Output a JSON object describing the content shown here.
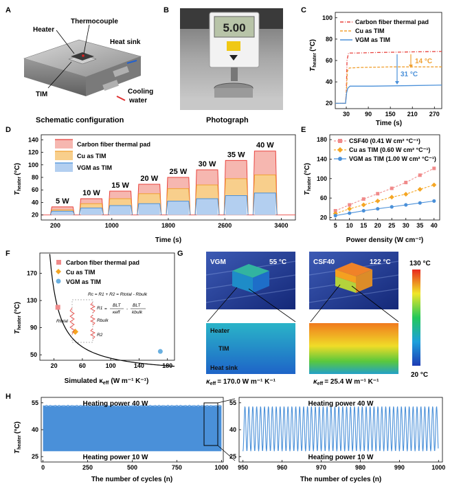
{
  "panel_letters": [
    "A",
    "B",
    "C",
    "D",
    "E",
    "F",
    "G",
    "H"
  ],
  "panel_a": {
    "labels": {
      "heater": "Heater",
      "thermocouple": "Thermocouple",
      "heat_sink": "Heat sink",
      "tim": "TIM",
      "cooling_1": "Cooling",
      "cooling_2": "water"
    },
    "caption": "Schematic configuration"
  },
  "panel_b": {
    "display": "5.00",
    "caption": "Photograph"
  },
  "colors": {
    "cf": "#f08a8a",
    "cu": "#f5a623",
    "vgm": "#4a90d9",
    "cf_line": "#e8413c",
    "cu_line": "#f0a030",
    "vgm_line": "#4a90d9"
  },
  "chart_data": [
    {
      "id": "C",
      "type": "line",
      "ylabel": "T",
      "ylabel_sub": "heater",
      "ylabel_unit": "(°C)",
      "xlabel": "Time (s)",
      "xlim": [
        0,
        290
      ],
      "ylim": [
        15,
        105
      ],
      "xticks": [
        "30",
        "90",
        "150",
        "210",
        "270"
      ],
      "xtick_values": [
        30,
        90,
        150,
        210,
        270
      ],
      "yticks": [
        "20",
        "40",
        "60",
        "80",
        "100"
      ],
      "ytick_values": [
        20,
        40,
        60,
        80,
        100
      ],
      "series": [
        {
          "name": "Carbon fiber thermal pad",
          "style": "dashdot",
          "points": [
            [
              0,
              20
            ],
            [
              28,
              20
            ],
            [
              30,
              30
            ],
            [
              32,
              60
            ],
            [
              36,
              67
            ],
            [
              60,
              67
            ],
            [
              120,
              67.5
            ],
            [
              200,
              68
            ],
            [
              290,
              68.5
            ]
          ]
        },
        {
          "name": "Cu as TIM",
          "style": "dashed",
          "points": [
            [
              0,
              20
            ],
            [
              28,
              20
            ],
            [
              30,
              28
            ],
            [
              33,
              50
            ],
            [
              38,
              53
            ],
            [
              70,
              53.5
            ],
            [
              150,
              54
            ],
            [
              290,
              54
            ]
          ]
        },
        {
          "name": "VGM as TIM",
          "style": "solid",
          "points": [
            [
              0,
              20
            ],
            [
              28,
              20
            ],
            [
              31,
              30
            ],
            [
              34,
              34
            ],
            [
              40,
              36
            ],
            [
              100,
              36
            ],
            [
              200,
              36.5
            ],
            [
              290,
              37
            ]
          ]
        }
      ],
      "annotations": [
        "14 °C",
        "31 °C"
      ]
    },
    {
      "id": "D",
      "type": "area",
      "ylabel": "T",
      "ylabel_sub": "heater",
      "ylabel_unit": "(°C)",
      "xlabel": "Time (s)",
      "xlim": [
        0,
        3600
      ],
      "ylim": [
        12,
        148
      ],
      "xticks": [
        "200",
        "1000",
        "1800",
        "2600",
        "3400"
      ],
      "xtick_values": [
        200,
        1000,
        1800,
        2600,
        3400
      ],
      "yticks": [
        "20",
        "40",
        "60",
        "80",
        "100",
        "120",
        "140"
      ],
      "ytick_values": [
        20,
        40,
        60,
        80,
        100,
        120,
        140
      ],
      "baseline": 20,
      "steps": [
        {
          "label": "5 W",
          "start": 150,
          "end": 450,
          "cf": 33,
          "cu": 28,
          "vgm": 26
        },
        {
          "label": "10 W",
          "start": 560,
          "end": 860,
          "cf": 46,
          "cu": 38,
          "vgm": 31
        },
        {
          "label": "15 W",
          "start": 970,
          "end": 1270,
          "cf": 58,
          "cu": 46,
          "vgm": 35
        },
        {
          "label": "20 W",
          "start": 1380,
          "end": 1680,
          "cf": 69,
          "cu": 54,
          "vgm": 38
        },
        {
          "label": "25 W",
          "start": 1790,
          "end": 2090,
          "cf": 80,
          "cu": 62,
          "vgm": 42
        },
        {
          "label": "30 W",
          "start": 2200,
          "end": 2500,
          "cf": 92,
          "cu": 68,
          "vgm": 46
        },
        {
          "label": "35 W",
          "start": 2610,
          "end": 2910,
          "cf": 107,
          "cu": 78,
          "vgm": 51
        },
        {
          "label": "40 W",
          "start": 3020,
          "end": 3320,
          "cf": 122,
          "cu": 84,
          "vgm": 55
        }
      ],
      "legend": [
        "Carbon fiber thermal pad",
        "Cu as TIM",
        "VGM as TIM"
      ]
    },
    {
      "id": "E",
      "type": "line",
      "ylabel": "T",
      "ylabel_sub": "heater",
      "ylabel_unit": "(°C)",
      "xlabel": "Power density (W cm⁻²)",
      "xlim": [
        3,
        42
      ],
      "ylim": [
        15,
        190
      ],
      "xticks": [
        "5",
        "10",
        "15",
        "20",
        "25",
        "30",
        "35",
        "40"
      ],
      "xtick_values": [
        5,
        10,
        15,
        20,
        25,
        30,
        35,
        40
      ],
      "yticks": [
        "20",
        "60",
        "100",
        "140",
        "180"
      ],
      "ytick_values": [
        20,
        60,
        100,
        140,
        180
      ],
      "x": [
        5,
        10,
        15,
        20,
        25,
        30,
        35,
        40
      ],
      "series": [
        {
          "name": "CSF40  (0.41 W cm² °C⁻¹)",
          "style": "dashed",
          "marker": "square",
          "values": [
            34,
            46,
            58,
            69,
            80,
            92,
            107,
            121
          ]
        },
        {
          "name": "Cu as TIM  (0.60 W cm² °C⁻¹)",
          "style": "dashed",
          "marker": "diamond",
          "values": [
            28,
            38,
            46,
            54,
            62,
            68,
            78,
            87
          ]
        },
        {
          "name": "VGM as TIM (1.00 W cm² °C⁻¹)",
          "style": "solid",
          "marker": "circle",
          "values": [
            24,
            29,
            34,
            38,
            42,
            46,
            50,
            54
          ]
        }
      ]
    },
    {
      "id": "F",
      "type": "scatter",
      "ylabel": "T",
      "ylabel_sub": "heater",
      "ylabel_unit": "(°C)",
      "xlabel": "Simulated κ",
      "xlabel_sub": "eff",
      "xlabel_unit": "(W m⁻¹ K⁻¹)",
      "xlim": [
        0,
        190
      ],
      "ylim": [
        42,
        200
      ],
      "xticks": [
        "20",
        "60",
        "100",
        "140",
        "180"
      ],
      "xtick_values": [
        20,
        60,
        100,
        140,
        180
      ],
      "yticks": [
        "50",
        "90",
        "130",
        "170"
      ],
      "ytick_values": [
        50,
        90,
        130,
        170
      ],
      "curve_fit": "T = 20 + 2500/κ",
      "points": [
        {
          "name": "Carbon fiber thermal pad",
          "x": 25.4,
          "y": 120,
          "marker": "square"
        },
        {
          "name": "Cu as TIM",
          "x": 50,
          "y": 84,
          "marker": "diamond"
        },
        {
          "name": "VGM as TIM",
          "x": 170,
          "y": 55,
          "marker": "circle"
        }
      ],
      "equations": {
        "eq1": "Rc = R1 + R2 = Rtotal - Rbulk",
        "eq2a": "BLT",
        "eq2b": "κeff",
        "eq2c": "BLT",
        "eq2d": "kbulk"
      },
      "circuit_labels": [
        "Rtotal",
        "R1",
        "Rbulk",
        "R2"
      ]
    },
    {
      "id": "H_left",
      "type": "area",
      "ylabel": "T",
      "ylabel_sub": "heater",
      "ylabel_unit": "(°C)",
      "xlabel": "The number of cycles (n)",
      "xlim": [
        -10,
        1010
      ],
      "ylim": [
        22,
        58
      ],
      "xticks": [
        "0",
        "250",
        "500",
        "750",
        "1000"
      ],
      "xtick_values": [
        0,
        250,
        500,
        750,
        1000
      ],
      "yticks": [
        "25",
        "40",
        "55"
      ],
      "ytick_values": [
        25,
        40,
        55
      ],
      "band_min": 28,
      "band_max": 53,
      "annotations": [
        "Heating power 40 W",
        "Heating power 10 W"
      ]
    },
    {
      "id": "H_right",
      "type": "line",
      "xlabel": "The number of cycles (n)",
      "xlim": [
        949,
        1001
      ],
      "ylim": [
        22,
        58
      ],
      "xticks": [
        "950",
        "960",
        "970",
        "980",
        "990",
        "1000"
      ],
      "xtick_values": [
        950,
        960,
        970,
        980,
        990,
        1000
      ],
      "yticks": [
        "25",
        "40",
        "55"
      ],
      "ytick_values": [
        25,
        40,
        55
      ],
      "cycle_min": 28,
      "cycle_max": 53,
      "cycles": 50,
      "annotations": [
        "Heating power 40 W",
        "Heating power 10 W"
      ]
    }
  ],
  "panel_g": {
    "vgm_label": "VGM",
    "vgm_temp": "55 °C",
    "csf_label": "CSF40",
    "csf_temp": "122 °C",
    "layers": [
      "Heater",
      "TIM",
      "Heat sink"
    ],
    "cbar_max": "130 °C",
    "cbar_min": "20 °C",
    "kappa_vgm": "= 170.0 W m⁻¹ K⁻¹",
    "kappa_csf": "= 25.4 W m⁻¹ K⁻¹",
    "kappa_symbol": "κ",
    "kappa_sub": "eff"
  }
}
